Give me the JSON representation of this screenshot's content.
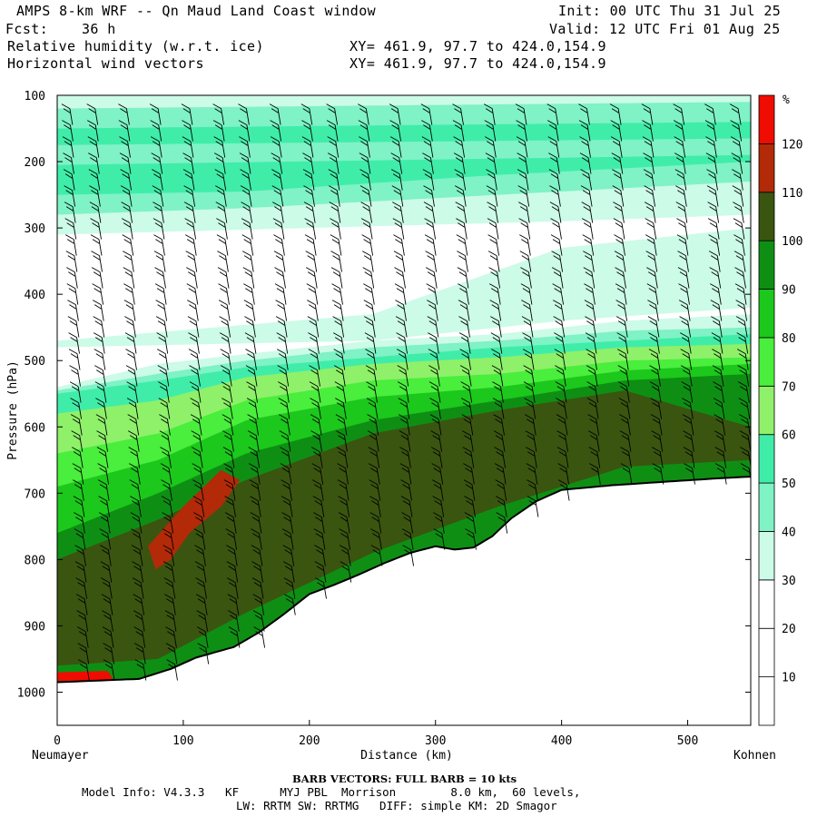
{
  "header": {
    "title": "AMPS 8-km WRF -- Qn Maud Land Coast window",
    "init": "Init: 00 UTC Thu 31 Jul 25",
    "fcst_label": "Fcst:",
    "fcst_value": "36 h",
    "valid": "Valid: 12 UTC Fri 01 Aug 25",
    "field1": "Relative humidity (w.r.t. ice)",
    "field1_xy": "XY= 461.9, 97.7 to 424.0,154.9",
    "field2": "Horizontal wind vectors",
    "field2_xy": "XY= 461.9, 97.7 to 424.0,154.9"
  },
  "footer": {
    "barb": "BARB VECTORS: FULL BARB = 10 kts",
    "model_info": "Model Info: V4.3.3   KF      MYJ PBL  Morrison        8.0 km,  60 levels,",
    "model_info2": "LW: RRTM SW: RRTMG   DIFF: simple KM: 2D Smagor"
  },
  "chart_data": {
    "type": "heatmap",
    "title": "Relative humidity (w.r.t. ice)",
    "xlabel": "Distance (km)",
    "ylabel": "Pressure (hPa)",
    "x_end_labels": [
      "Neumayer",
      "Kohnen"
    ],
    "xlim": [
      0,
      550
    ],
    "ylim": [
      1050,
      100
    ],
    "x_ticks": [
      0,
      100,
      200,
      300,
      400,
      500
    ],
    "y_ticks": [
      100,
      200,
      300,
      400,
      500,
      600,
      700,
      800,
      900,
      1000
    ],
    "colorbar": {
      "unit": "%",
      "levels": [
        10,
        20,
        30,
        40,
        50,
        60,
        70,
        80,
        90,
        100,
        110,
        120
      ],
      "colors": [
        "#ffffff",
        "#ffffff",
        "#ffffff",
        "#ccfbe8",
        "#7ff2c6",
        "#3feda9",
        "#8ff06a",
        "#4aee3c",
        "#1cc81b",
        "#0e8f14",
        "#3a5510",
        "#b22a08",
        "#f00c00"
      ]
    },
    "terrain": [
      [
        0,
        985
      ],
      [
        40,
        982
      ],
      [
        65,
        980
      ],
      [
        90,
        965
      ],
      [
        110,
        948
      ],
      [
        140,
        932
      ],
      [
        160,
        910
      ],
      [
        180,
        882
      ],
      [
        200,
        852
      ],
      [
        220,
        838
      ],
      [
        240,
        822
      ],
      [
        260,
        805
      ],
      [
        280,
        790
      ],
      [
        300,
        780
      ],
      [
        315,
        785
      ],
      [
        330,
        782
      ],
      [
        345,
        765
      ],
      [
        360,
        738
      ],
      [
        380,
        712
      ],
      [
        400,
        695
      ],
      [
        440,
        688
      ],
      [
        480,
        683
      ],
      [
        520,
        678
      ],
      [
        550,
        675
      ]
    ],
    "barb_columns_km": [
      10,
      30,
      55,
      80,
      105,
      130,
      150,
      175,
      200,
      220,
      245,
      270,
      295,
      320,
      345,
      370,
      395,
      420,
      445,
      470,
      495,
      520,
      540
    ],
    "barb_units": "kts"
  }
}
